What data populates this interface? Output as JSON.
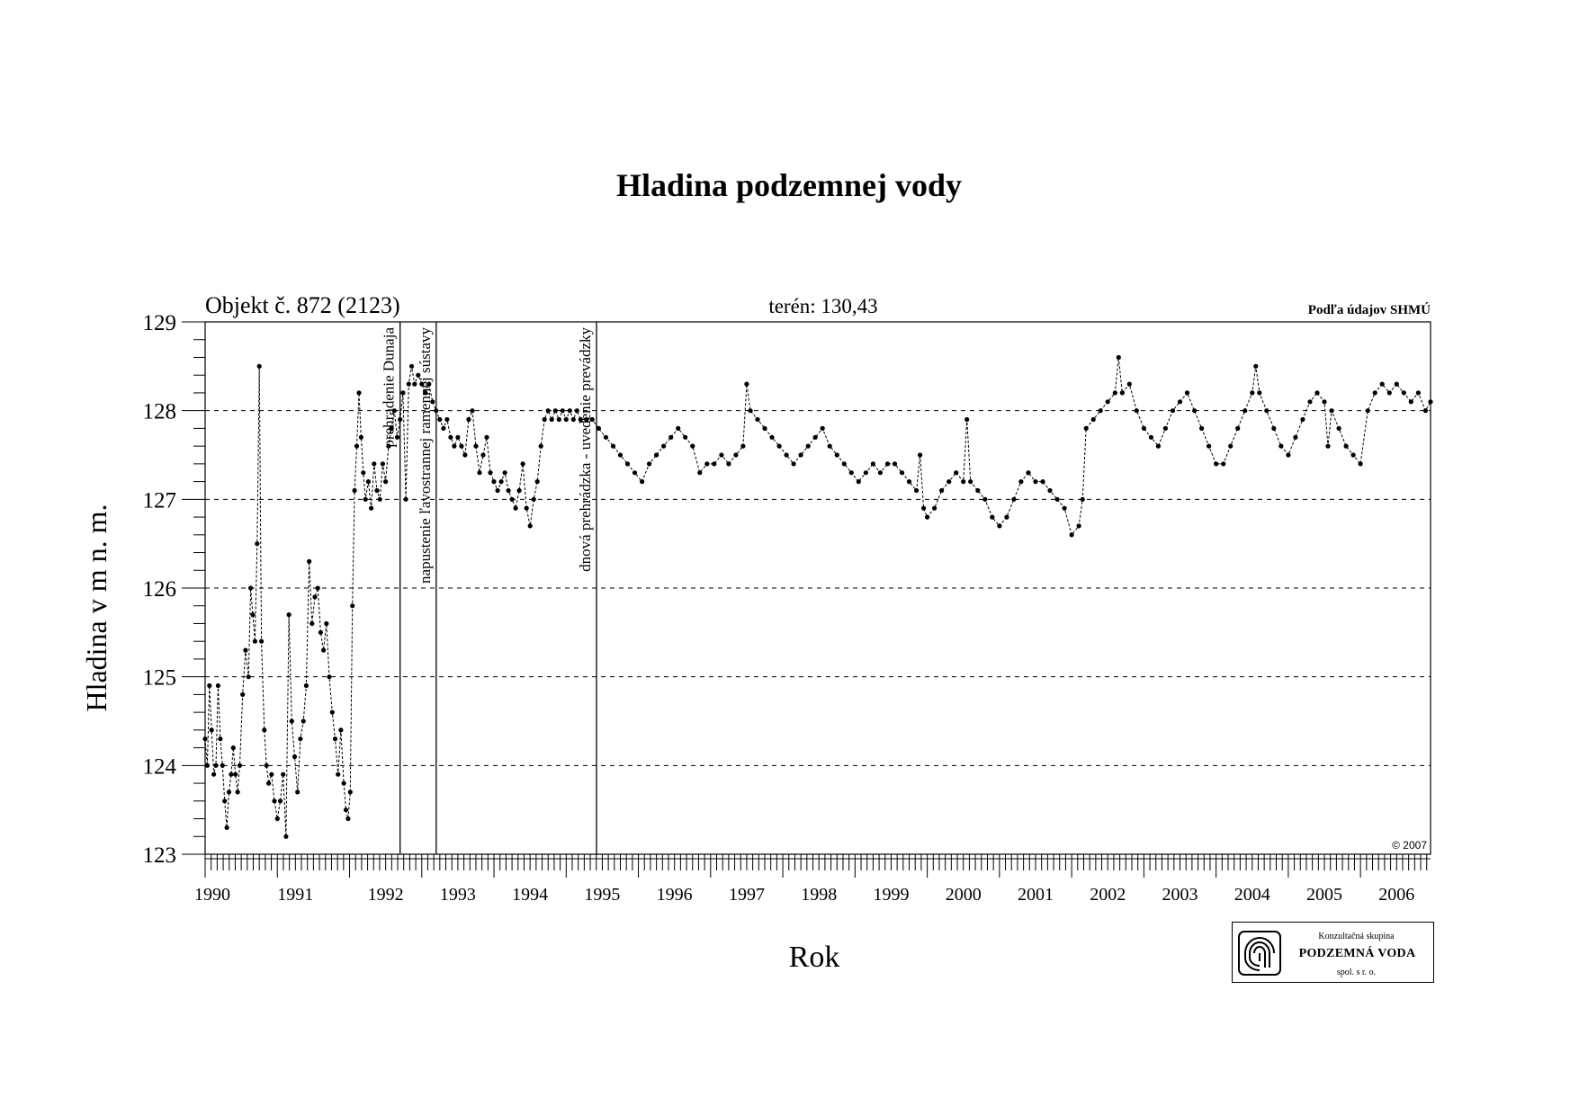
{
  "page": {
    "title": "Hladina podzemnej vody",
    "object_label": "Objekt č. 872 (2123)",
    "terrain_label": "terén: 130,43",
    "source_label": "Podľa údajov SHMÚ",
    "copyright": "© 2007"
  },
  "logo": {
    "line1": "Konzultačná skupina",
    "line2": "PODZEMNÁ VODA",
    "line3": "spol. s r. o."
  },
  "chart_data": {
    "type": "line",
    "title": "Hladina podzemnej vody",
    "xlabel": "Rok",
    "ylabel": "Hladina v m n. m.",
    "xlim": [
      1990.0,
      2006.97
    ],
    "ylim": [
      123,
      129
    ],
    "yticks": [
      123,
      124,
      125,
      126,
      127,
      128,
      129
    ],
    "ytick_labels": [
      "123",
      "124",
      "125",
      "126",
      "127",
      "128",
      "129"
    ],
    "x_tick_labels": [
      "1990",
      "1991",
      "1992",
      "1993",
      "1994",
      "1995",
      "1996",
      "1997",
      "1998",
      "1999",
      "2000",
      "2001",
      "2002",
      "2003",
      "2004",
      "2005",
      "2006"
    ],
    "grid": "horizontal dashed at 124, 125, 126, 127, 128",
    "line_style": "dashed with dot markers",
    "events": [
      {
        "x": 1992.7,
        "label": "prehradenie Dunaja"
      },
      {
        "x": 1993.2,
        "label": "napustenie ľavostrannej ramennej sústavy"
      },
      {
        "x": 1995.42,
        "label": "dnová prehrádzka - uvedenie prevádzky"
      }
    ],
    "series": [
      {
        "values": [
          [
            1990.0,
            124.3
          ],
          [
            1990.03,
            124.0
          ],
          [
            1990.06,
            124.9
          ],
          [
            1990.09,
            124.4
          ],
          [
            1990.12,
            123.9
          ],
          [
            1990.15,
            124.0
          ],
          [
            1990.18,
            124.9
          ],
          [
            1990.21,
            124.3
          ],
          [
            1990.24,
            124.0
          ],
          [
            1990.27,
            123.6
          ],
          [
            1990.3,
            123.3
          ],
          [
            1990.33,
            123.7
          ],
          [
            1990.36,
            123.9
          ],
          [
            1990.39,
            124.2
          ],
          [
            1990.42,
            123.9
          ],
          [
            1990.45,
            123.7
          ],
          [
            1990.48,
            124.0
          ],
          [
            1990.52,
            124.8
          ],
          [
            1990.56,
            125.3
          ],
          [
            1990.6,
            125.0
          ],
          [
            1990.63,
            126.0
          ],
          [
            1990.66,
            125.7
          ],
          [
            1990.69,
            125.4
          ],
          [
            1990.72,
            126.5
          ],
          [
            1990.75,
            128.5
          ],
          [
            1990.78,
            125.4
          ],
          [
            1990.82,
            124.4
          ],
          [
            1990.85,
            124.0
          ],
          [
            1990.88,
            123.8
          ],
          [
            1990.92,
            123.9
          ],
          [
            1990.96,
            123.6
          ],
          [
            1991.0,
            123.4
          ],
          [
            1991.04,
            123.6
          ],
          [
            1991.08,
            123.9
          ],
          [
            1991.12,
            123.2
          ],
          [
            1991.16,
            125.7
          ],
          [
            1991.2,
            124.5
          ],
          [
            1991.24,
            124.1
          ],
          [
            1991.28,
            123.7
          ],
          [
            1991.32,
            124.3
          ],
          [
            1991.36,
            124.5
          ],
          [
            1991.4,
            124.9
          ],
          [
            1991.44,
            126.3
          ],
          [
            1991.48,
            125.6
          ],
          [
            1991.52,
            125.9
          ],
          [
            1991.56,
            126.0
          ],
          [
            1991.6,
            125.5
          ],
          [
            1991.64,
            125.3
          ],
          [
            1991.68,
            125.6
          ],
          [
            1991.72,
            125.0
          ],
          [
            1991.76,
            124.6
          ],
          [
            1991.8,
            124.3
          ],
          [
            1991.84,
            123.9
          ],
          [
            1991.88,
            124.4
          ],
          [
            1991.92,
            123.8
          ],
          [
            1991.95,
            123.5
          ],
          [
            1991.98,
            123.4
          ],
          [
            1992.01,
            123.7
          ],
          [
            1992.04,
            125.8
          ],
          [
            1992.07,
            127.1
          ],
          [
            1992.1,
            127.6
          ],
          [
            1992.13,
            128.2
          ],
          [
            1992.16,
            127.7
          ],
          [
            1992.19,
            127.3
          ],
          [
            1992.22,
            127.0
          ],
          [
            1992.26,
            127.2
          ],
          [
            1992.3,
            126.9
          ],
          [
            1992.34,
            127.4
          ],
          [
            1992.38,
            127.1
          ],
          [
            1992.42,
            127.0
          ],
          [
            1992.46,
            127.4
          ],
          [
            1992.5,
            127.2
          ],
          [
            1992.54,
            127.6
          ],
          [
            1992.58,
            127.8
          ],
          [
            1992.62,
            128.0
          ],
          [
            1992.66,
            127.7
          ],
          [
            1992.7,
            127.9
          ],
          [
            1992.74,
            128.2
          ],
          [
            1992.78,
            127.0
          ],
          [
            1992.82,
            128.3
          ],
          [
            1992.86,
            128.5
          ],
          [
            1992.9,
            128.3
          ],
          [
            1992.95,
            128.4
          ],
          [
            1993.0,
            128.3
          ],
          [
            1993.05,
            128.2
          ],
          [
            1993.1,
            128.3
          ],
          [
            1993.15,
            128.1
          ],
          [
            1993.2,
            128.0
          ],
          [
            1993.25,
            127.9
          ],
          [
            1993.3,
            127.8
          ],
          [
            1993.35,
            127.9
          ],
          [
            1993.4,
            127.7
          ],
          [
            1993.45,
            127.6
          ],
          [
            1993.5,
            127.7
          ],
          [
            1993.55,
            127.6
          ],
          [
            1993.6,
            127.5
          ],
          [
            1993.65,
            127.9
          ],
          [
            1993.7,
            128.0
          ],
          [
            1993.75,
            127.6
          ],
          [
            1993.8,
            127.3
          ],
          [
            1993.85,
            127.5
          ],
          [
            1993.9,
            127.7
          ],
          [
            1993.95,
            127.3
          ],
          [
            1994.0,
            127.2
          ],
          [
            1994.05,
            127.1
          ],
          [
            1994.1,
            127.2
          ],
          [
            1994.15,
            127.3
          ],
          [
            1994.2,
            127.1
          ],
          [
            1994.25,
            127.0
          ],
          [
            1994.3,
            126.9
          ],
          [
            1994.35,
            127.1
          ],
          [
            1994.4,
            127.4
          ],
          [
            1994.45,
            126.9
          ],
          [
            1994.5,
            126.7
          ],
          [
            1994.55,
            127.0
          ],
          [
            1994.6,
            127.2
          ],
          [
            1994.65,
            127.6
          ],
          [
            1994.7,
            127.9
          ],
          [
            1994.75,
            128.0
          ],
          [
            1994.8,
            127.9
          ],
          [
            1994.85,
            128.0
          ],
          [
            1994.9,
            127.9
          ],
          [
            1994.95,
            128.0
          ],
          [
            1995.0,
            127.9
          ],
          [
            1995.05,
            128.0
          ],
          [
            1995.1,
            127.9
          ],
          [
            1995.15,
            128.0
          ],
          [
            1995.2,
            127.9
          ],
          [
            1995.28,
            127.9
          ],
          [
            1995.36,
            127.9
          ],
          [
            1995.45,
            127.8
          ],
          [
            1995.55,
            127.7
          ],
          [
            1995.65,
            127.6
          ],
          [
            1995.75,
            127.5
          ],
          [
            1995.85,
            127.4
          ],
          [
            1995.95,
            127.3
          ],
          [
            1996.05,
            127.2
          ],
          [
            1996.15,
            127.4
          ],
          [
            1996.25,
            127.5
          ],
          [
            1996.35,
            127.6
          ],
          [
            1996.45,
            127.7
          ],
          [
            1996.55,
            127.8
          ],
          [
            1996.65,
            127.7
          ],
          [
            1996.75,
            127.6
          ],
          [
            1996.85,
            127.3
          ],
          [
            1996.95,
            127.4
          ],
          [
            1997.05,
            127.4
          ],
          [
            1997.15,
            127.5
          ],
          [
            1997.25,
            127.4
          ],
          [
            1997.35,
            127.5
          ],
          [
            1997.45,
            127.6
          ],
          [
            1997.5,
            128.3
          ],
          [
            1997.55,
            128.0
          ],
          [
            1997.65,
            127.9
          ],
          [
            1997.75,
            127.8
          ],
          [
            1997.85,
            127.7
          ],
          [
            1997.95,
            127.6
          ],
          [
            1998.05,
            127.5
          ],
          [
            1998.15,
            127.4
          ],
          [
            1998.25,
            127.5
          ],
          [
            1998.35,
            127.6
          ],
          [
            1998.45,
            127.7
          ],
          [
            1998.55,
            127.8
          ],
          [
            1998.65,
            127.6
          ],
          [
            1998.75,
            127.5
          ],
          [
            1998.85,
            127.4
          ],
          [
            1998.95,
            127.3
          ],
          [
            1999.05,
            127.2
          ],
          [
            1999.15,
            127.3
          ],
          [
            1999.25,
            127.4
          ],
          [
            1999.35,
            127.3
          ],
          [
            1999.45,
            127.4
          ],
          [
            1999.55,
            127.4
          ],
          [
            1999.65,
            127.3
          ],
          [
            1999.75,
            127.2
          ],
          [
            1999.85,
            127.1
          ],
          [
            1999.9,
            127.5
          ],
          [
            1999.95,
            126.9
          ],
          [
            2000.0,
            126.8
          ],
          [
            2000.1,
            126.9
          ],
          [
            2000.2,
            127.1
          ],
          [
            2000.3,
            127.2
          ],
          [
            2000.4,
            127.3
          ],
          [
            2000.5,
            127.2
          ],
          [
            2000.55,
            127.9
          ],
          [
            2000.6,
            127.2
          ],
          [
            2000.7,
            127.1
          ],
          [
            2000.8,
            127.0
          ],
          [
            2000.9,
            126.8
          ],
          [
            2001.0,
            126.7
          ],
          [
            2001.1,
            126.8
          ],
          [
            2001.2,
            127.0
          ],
          [
            2001.3,
            127.2
          ],
          [
            2001.4,
            127.3
          ],
          [
            2001.5,
            127.2
          ],
          [
            2001.6,
            127.2
          ],
          [
            2001.7,
            127.1
          ],
          [
            2001.8,
            127.0
          ],
          [
            2001.9,
            126.9
          ],
          [
            2002.0,
            126.6
          ],
          [
            2002.1,
            126.7
          ],
          [
            2002.15,
            127.0
          ],
          [
            2002.2,
            127.8
          ],
          [
            2002.3,
            127.9
          ],
          [
            2002.4,
            128.0
          ],
          [
            2002.5,
            128.1
          ],
          [
            2002.6,
            128.2
          ],
          [
            2002.65,
            128.6
          ],
          [
            2002.7,
            128.2
          ],
          [
            2002.8,
            128.3
          ],
          [
            2002.9,
            128.0
          ],
          [
            2003.0,
            127.8
          ],
          [
            2003.1,
            127.7
          ],
          [
            2003.2,
            127.6
          ],
          [
            2003.3,
            127.8
          ],
          [
            2003.4,
            128.0
          ],
          [
            2003.5,
            128.1
          ],
          [
            2003.6,
            128.2
          ],
          [
            2003.7,
            128.0
          ],
          [
            2003.8,
            127.8
          ],
          [
            2003.9,
            127.6
          ],
          [
            2004.0,
            127.4
          ],
          [
            2004.1,
            127.4
          ],
          [
            2004.2,
            127.6
          ],
          [
            2004.3,
            127.8
          ],
          [
            2004.4,
            128.0
          ],
          [
            2004.5,
            128.2
          ],
          [
            2004.55,
            128.5
          ],
          [
            2004.6,
            128.2
          ],
          [
            2004.7,
            128.0
          ],
          [
            2004.8,
            127.8
          ],
          [
            2004.9,
            127.6
          ],
          [
            2005.0,
            127.5
          ],
          [
            2005.1,
            127.7
          ],
          [
            2005.2,
            127.9
          ],
          [
            2005.3,
            128.1
          ],
          [
            2005.4,
            128.2
          ],
          [
            2005.5,
            128.1
          ],
          [
            2005.55,
            127.6
          ],
          [
            2005.6,
            128.0
          ],
          [
            2005.7,
            127.8
          ],
          [
            2005.8,
            127.6
          ],
          [
            2005.9,
            127.5
          ],
          [
            2006.0,
            127.4
          ],
          [
            2006.1,
            128.0
          ],
          [
            2006.2,
            128.2
          ],
          [
            2006.3,
            128.3
          ],
          [
            2006.4,
            128.2
          ],
          [
            2006.5,
            128.3
          ],
          [
            2006.6,
            128.2
          ],
          [
            2006.7,
            128.1
          ],
          [
            2006.8,
            128.2
          ],
          [
            2006.9,
            128.0
          ],
          [
            2006.97,
            128.1
          ]
        ]
      }
    ]
  }
}
